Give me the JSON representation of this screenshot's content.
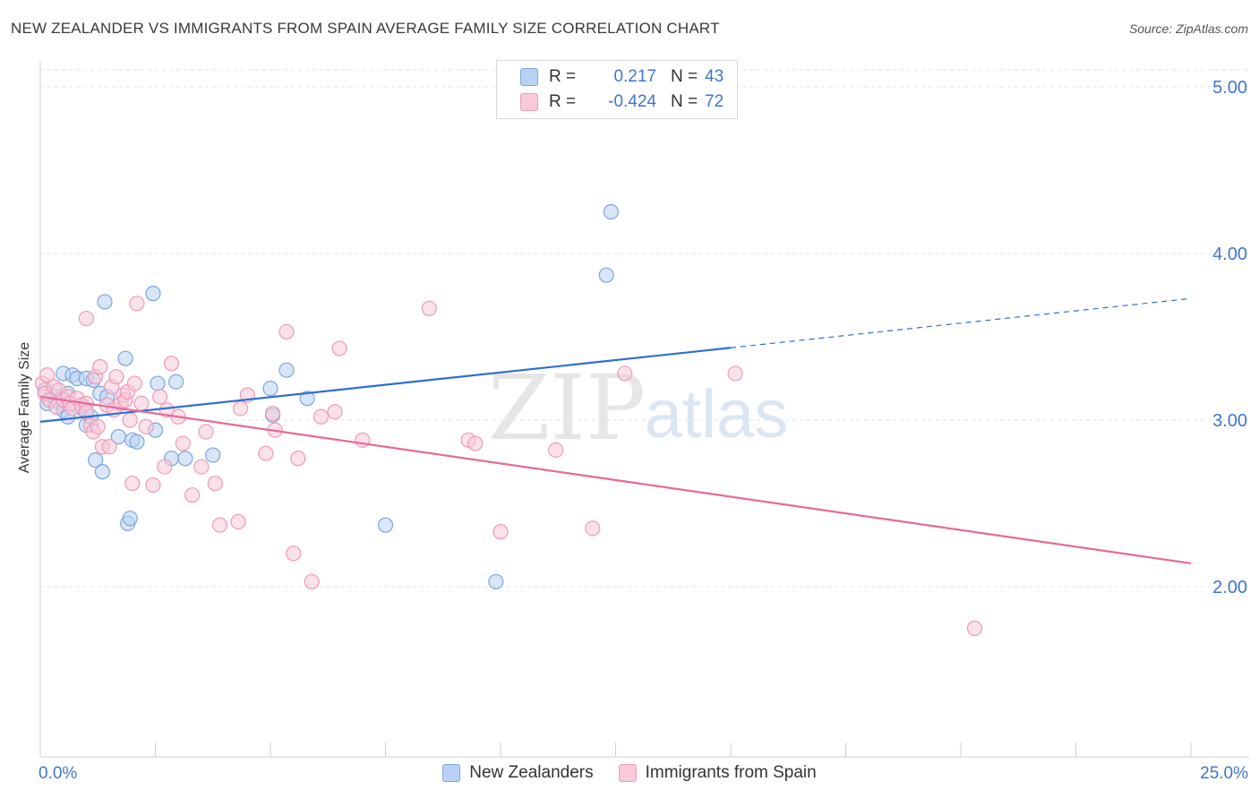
{
  "header": {
    "title": "NEW ZEALANDER VS IMMIGRANTS FROM SPAIN AVERAGE FAMILY SIZE CORRELATION CHART",
    "source": "Source: ZipAtlas.com"
  },
  "watermark": {
    "zip": "ZIP",
    "atlas": "atlas"
  },
  "legend_top": {
    "rows": [
      {
        "r_label": "R =",
        "r_value": "0.217",
        "n_label": "N =",
        "n_value": "43"
      },
      {
        "r_label": "R =",
        "r_value": "-0.424",
        "n_label": "N =",
        "n_value": "72"
      }
    ]
  },
  "colors": {
    "blue_fill": "#b8d2f3",
    "blue_stroke": "#7aa6e0",
    "blue_line": "#2f6fd0",
    "pink_fill": "#f8c9d8",
    "pink_stroke": "#ee9ab6",
    "pink_line": "#e56a98",
    "axis_text": "#3e76d1",
    "grid": "#e3e3e3"
  },
  "chart_data": {
    "type": "scatter",
    "title": "NEW ZEALANDER VS IMMIGRANTS FROM SPAIN AVERAGE FAMILY SIZE CORRELATION CHART",
    "xlabel": "",
    "ylabel": "Average Family Size",
    "xlim": [
      0,
      25
    ],
    "ylim": [
      1.0,
      5.1
    ],
    "x_tick_labels": [
      "0.0%",
      "25.0%"
    ],
    "y_ticks": [
      2.0,
      3.0,
      4.0,
      5.0
    ],
    "y_tick_labels": [
      "2.00",
      "3.00",
      "4.00",
      "5.00"
    ],
    "grid": true,
    "legend_position": "bottom",
    "series": [
      {
        "name": "New Zealanders",
        "r": 0.217,
        "n": 43,
        "trend": {
          "x0": 0,
          "y0": 2.99,
          "x1": 25,
          "y1": 3.73,
          "solid_until_x": 15
        },
        "points": [
          [
            0.1,
            3.18
          ],
          [
            0.15,
            3.1
          ],
          [
            0.2,
            3.12
          ],
          [
            0.3,
            3.14
          ],
          [
            0.4,
            3.11
          ],
          [
            0.5,
            3.06
          ],
          [
            0.5,
            3.28
          ],
          [
            0.6,
            3.16
          ],
          [
            0.6,
            3.02
          ],
          [
            0.7,
            3.27
          ],
          [
            0.8,
            3.25
          ],
          [
            0.9,
            3.07
          ],
          [
            1.0,
            3.05
          ],
          [
            1.0,
            2.97
          ],
          [
            1.0,
            3.25
          ],
          [
            1.1,
            3.02
          ],
          [
            1.15,
            3.24
          ],
          [
            1.2,
            2.76
          ],
          [
            1.3,
            3.16
          ],
          [
            1.35,
            2.69
          ],
          [
            1.4,
            3.71
          ],
          [
            1.45,
            3.14
          ],
          [
            1.7,
            2.9
          ],
          [
            1.85,
            3.37
          ],
          [
            1.9,
            2.38
          ],
          [
            1.95,
            2.41
          ],
          [
            2.0,
            2.88
          ],
          [
            2.1,
            2.87
          ],
          [
            2.45,
            3.76
          ],
          [
            2.5,
            2.94
          ],
          [
            2.55,
            3.22
          ],
          [
            2.85,
            2.77
          ],
          [
            2.95,
            3.23
          ],
          [
            3.15,
            2.77
          ],
          [
            3.75,
            2.79
          ],
          [
            5.0,
            3.19
          ],
          [
            5.05,
            3.03
          ],
          [
            5.35,
            3.3
          ],
          [
            5.8,
            3.13
          ],
          [
            7.5,
            2.37
          ],
          [
            9.9,
            2.03
          ],
          [
            12.3,
            3.87
          ],
          [
            12.4,
            4.25
          ]
        ]
      },
      {
        "name": "Immigrants from Spain",
        "r": -0.424,
        "n": 72,
        "trend": {
          "x0": 0,
          "y0": 3.14,
          "x1": 25,
          "y1": 2.14,
          "solid_until_x": 25
        },
        "points": [
          [
            0.05,
            3.22
          ],
          [
            0.1,
            3.16
          ],
          [
            0.15,
            3.27
          ],
          [
            0.2,
            3.12
          ],
          [
            0.3,
            3.2
          ],
          [
            0.35,
            3.08
          ],
          [
            0.4,
            3.18
          ],
          [
            0.5,
            3.12
          ],
          [
            0.6,
            3.14
          ],
          [
            0.65,
            3.1
          ],
          [
            0.7,
            3.07
          ],
          [
            0.8,
            3.13
          ],
          [
            0.9,
            3.09
          ],
          [
            1.0,
            3.1
          ],
          [
            1.0,
            3.05
          ],
          [
            1.1,
            2.97
          ],
          [
            1.15,
            2.93
          ],
          [
            1.2,
            3.26
          ],
          [
            1.25,
            2.96
          ],
          [
            1.3,
            3.32
          ],
          [
            1.35,
            2.84
          ],
          [
            1.45,
            3.09
          ],
          [
            1.5,
            2.84
          ],
          [
            1.55,
            3.2
          ],
          [
            1.6,
            3.06
          ],
          [
            1.65,
            3.26
          ],
          [
            1.75,
            3.1
          ],
          [
            1.8,
            3.15
          ],
          [
            1.85,
            3.12
          ],
          [
            1.9,
            3.17
          ],
          [
            1.95,
            3.0
          ],
          [
            2.0,
            2.62
          ],
          [
            2.05,
            3.22
          ],
          [
            2.1,
            3.7
          ],
          [
            2.2,
            3.1
          ],
          [
            2.3,
            2.96
          ],
          [
            2.45,
            2.61
          ],
          [
            2.6,
            3.14
          ],
          [
            2.7,
            2.72
          ],
          [
            2.75,
            3.06
          ],
          [
            2.85,
            3.34
          ],
          [
            3.0,
            3.02
          ],
          [
            3.1,
            2.86
          ],
          [
            3.3,
            2.55
          ],
          [
            3.5,
            2.72
          ],
          [
            3.6,
            2.93
          ],
          [
            3.8,
            2.62
          ],
          [
            3.9,
            2.37
          ],
          [
            4.3,
            2.39
          ],
          [
            4.35,
            3.07
          ],
          [
            4.5,
            3.15
          ],
          [
            4.9,
            2.8
          ],
          [
            5.05,
            3.04
          ],
          [
            5.1,
            2.94
          ],
          [
            5.35,
            3.53
          ],
          [
            5.5,
            2.2
          ],
          [
            5.6,
            2.77
          ],
          [
            5.9,
            2.03
          ],
          [
            6.1,
            3.02
          ],
          [
            6.4,
            3.05
          ],
          [
            6.5,
            3.43
          ],
          [
            7.0,
            2.88
          ],
          [
            8.45,
            3.67
          ],
          [
            9.3,
            2.88
          ],
          [
            9.45,
            2.86
          ],
          [
            10.0,
            2.33
          ],
          [
            11.2,
            2.82
          ],
          [
            12.0,
            2.35
          ],
          [
            12.7,
            3.28
          ],
          [
            15.1,
            3.28
          ],
          [
            20.3,
            1.75
          ],
          [
            1.0,
            3.61
          ]
        ]
      }
    ]
  }
}
